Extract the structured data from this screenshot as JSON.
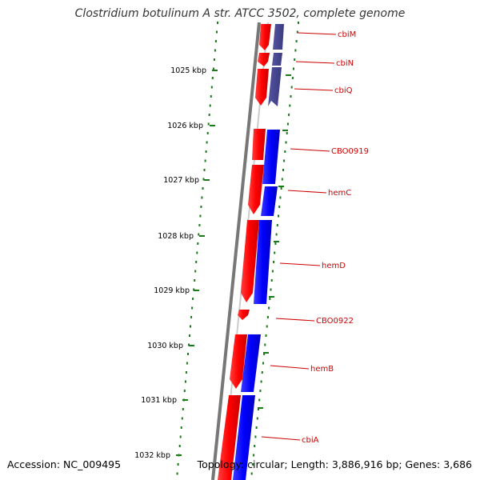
{
  "title": "Clostridium botulinum A str. ATCC 3502, complete genome",
  "accession_label": "Accession: NC_009495",
  "summary_label": "Topology: circular; Length: 3,886,916 bp; Genes: 3,686",
  "colors": {
    "forward_feature": "#ff0000",
    "reverse_feature": "#0000ff",
    "reverse_feature_alt": "#40408a",
    "gene_label": "#cc0000",
    "tick": "#1a7a1a",
    "backbone": "#777777"
  },
  "scale_labels": [
    "1025 kbp",
    "1026 kbp",
    "1027 kbp",
    "1028 kbp",
    "1029 kbp",
    "1030 kbp",
    "1031 kbp",
    "1032 kbp"
  ],
  "genes": [
    "cbiM",
    "cbiN",
    "cbiQ",
    "CBO0919",
    "hemC",
    "hemD",
    "CBO0922",
    "hemB",
    "cbiA"
  ]
}
